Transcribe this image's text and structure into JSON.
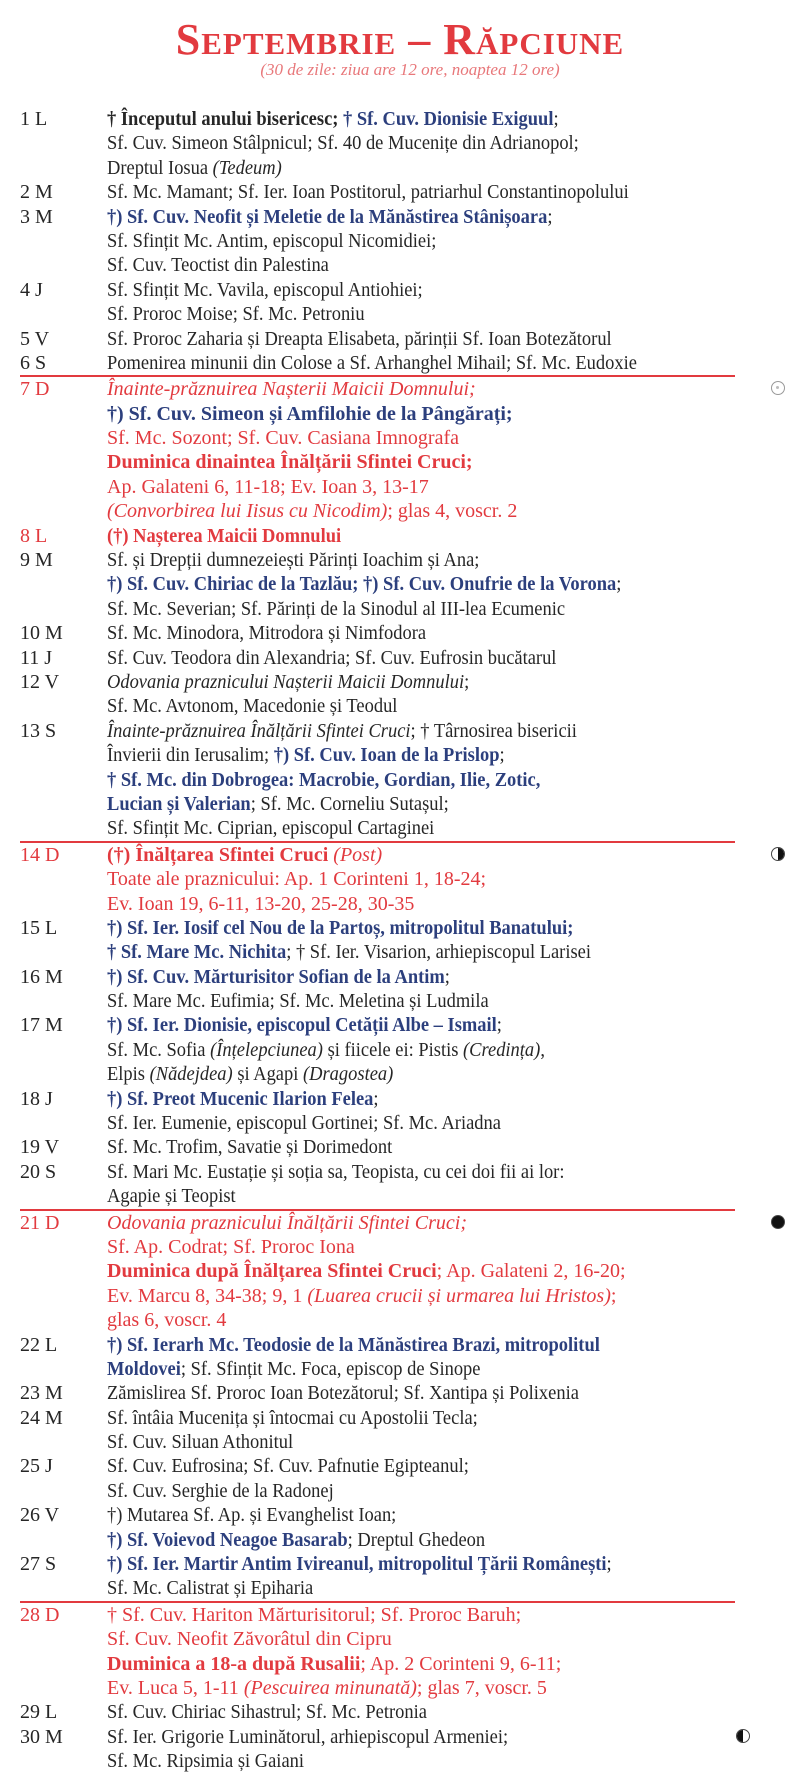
{
  "header": {
    "title": "Septembrie – Răpciune",
    "subtitle": "(30 de zile: ziua are 12 ore, noaptea 12 ore)"
  },
  "colors": {
    "red": "#e23a3f",
    "blue": "#2c3f7d"
  },
  "days": [
    {
      "label": "1 L",
      "lines": [
        [
          {
            "s": "bk",
            "t": "† Începutul anului bisericesc; "
          },
          {
            "s": "b",
            "t": "† Sf. Cuv. Dionisie Exiguul"
          },
          {
            "s": "n",
            "t": ";"
          }
        ],
        [
          {
            "s": "n",
            "t": "Sf. Cuv. Simeon Stâlpnicul; Sf. 40 de Mucenițe din Adrianopol;"
          }
        ],
        [
          {
            "s": "n",
            "t": "Dreptul Iosua "
          },
          {
            "s": "i",
            "t": "(Tedeum)"
          }
        ]
      ]
    },
    {
      "label": "2 M",
      "lines": [
        [
          {
            "s": "n",
            "t": "Sf. Mc. Mamant; Sf. Ier. Ioan Postitorul, patriarhul Constantinopolului"
          }
        ]
      ]
    },
    {
      "label": "3 M",
      "lines": [
        [
          {
            "s": "b",
            "t": "†) Sf. Cuv. Neofit și Meletie de la Mănăstirea Stânișoara"
          },
          {
            "s": "n",
            "t": ";"
          }
        ],
        [
          {
            "s": "n",
            "t": "Sf. Sfințit Mc. Antim, episcopul Nicomidiei;"
          }
        ],
        [
          {
            "s": "n",
            "t": "Sf. Cuv. Teoctist din Palestina"
          }
        ]
      ]
    },
    {
      "label": "4 J",
      "lines": [
        [
          {
            "s": "n",
            "t": "Sf. Sfințit Mc. Vavila, episcopul Antiohiei;"
          }
        ],
        [
          {
            "s": "n",
            "t": "Sf. Proroc Moise; Sf. Mc. Petroniu"
          }
        ]
      ]
    },
    {
      "label": "5 V",
      "lines": [
        [
          {
            "s": "n",
            "t": "Sf. Proroc Zaharia și Dreapta Elisabeta, părinții Sf. Ioan Botezătorul"
          }
        ]
      ]
    },
    {
      "label": "6 S",
      "lines": [
        [
          {
            "s": "n",
            "t": "Pomenirea minunii din Colose a Sf. Arhanghel Mihail; Sf. Mc. Eudoxie"
          }
        ]
      ]
    },
    {
      "label": "7 D",
      "sunday": true,
      "moon": "new",
      "lines": [
        [
          {
            "s": "ri",
            "t": "Înainte-prăznuirea Nașterii Maicii Domnului;"
          }
        ],
        [
          {
            "s": "b",
            "t": "†) Sf. Cuv. Simeon și Amfilohie de la Pângărați;"
          }
        ],
        [
          {
            "s": "r",
            "t": "Sf. Mc. Sozont; Sf. Cuv. Casiana Imnografa"
          }
        ],
        [
          {
            "s": "rb",
            "t": "Duminica dinaintea Înălțării Sfintei Cruci;"
          }
        ],
        [
          {
            "s": "r",
            "t": "Ap. Galateni 6, 11-18; Ev. Ioan 3, 13-17"
          }
        ],
        [
          {
            "s": "ri",
            "t": "(Convorbirea lui Iisus cu Nicodim)"
          },
          {
            "s": "r",
            "t": "; glas 4, voscr. 2"
          }
        ]
      ]
    },
    {
      "label": "8 L",
      "red": true,
      "lines": [
        [
          {
            "s": "rb",
            "t": "(†) Nașterea Maicii Domnului"
          }
        ]
      ]
    },
    {
      "label": "9 M",
      "lines": [
        [
          {
            "s": "n",
            "t": "Sf. și Drepții dumnezeiești Părinți Ioachim și Ana;"
          }
        ],
        [
          {
            "s": "b",
            "t": "†) Sf. Cuv. Chiriac de la Tazlău; †) Sf. Cuv. Onufrie de la Vorona"
          },
          {
            "s": "n",
            "t": ";"
          }
        ],
        [
          {
            "s": "n",
            "t": "Sf. Mc. Severian; Sf. Părinți de la Sinodul al III-lea Ecumenic"
          }
        ]
      ]
    },
    {
      "label": "10 M",
      "lines": [
        [
          {
            "s": "n",
            "t": "Sf. Mc. Minodora, Mitrodora și Nimfodora"
          }
        ]
      ]
    },
    {
      "label": "11 J",
      "lines": [
        [
          {
            "s": "n",
            "t": "Sf. Cuv. Teodora din Alexandria; Sf. Cuv. Eufrosin bucătarul"
          }
        ]
      ]
    },
    {
      "label": "12 V",
      "lines": [
        [
          {
            "s": "i",
            "t": "Odovania praznicului Nașterii Maicii Domnului"
          },
          {
            "s": "n",
            "t": ";"
          }
        ],
        [
          {
            "s": "n",
            "t": "Sf. Mc. Avtonom, Macedonie și Teodul"
          }
        ]
      ]
    },
    {
      "label": "13 S",
      "lines": [
        [
          {
            "s": "i",
            "t": "Înainte-prăznuirea Înălțării Sfintei Cruci"
          },
          {
            "s": "n",
            "t": "; † Târnosirea bisericii"
          }
        ],
        [
          {
            "s": "n",
            "t": "Învierii din Ierusalim; "
          },
          {
            "s": "b",
            "t": "†) Sf. Cuv. Ioan de la Prislop"
          },
          {
            "s": "n",
            "t": ";"
          }
        ],
        [
          {
            "s": "b",
            "t": "† Sf. Mc. din Dobrogea: Macrobie, Gordian, Ilie, Zotic,"
          }
        ],
        [
          {
            "s": "b",
            "t": "Lucian și Valerian"
          },
          {
            "s": "n",
            "t": "; Sf. Mc. Corneliu Sutașul;"
          }
        ],
        [
          {
            "s": "n",
            "t": "Sf. Sfințit Mc. Ciprian, episcopul Cartaginei"
          }
        ]
      ]
    },
    {
      "label": "14 D",
      "sunday": true,
      "moon": "first",
      "lines": [
        [
          {
            "s": "rb",
            "t": "(†) Înălțarea Sfintei Cruci "
          },
          {
            "s": "ri",
            "t": "(Post)"
          }
        ],
        [
          {
            "s": "r",
            "t": "Toate ale praznicului: Ap. 1 Corinteni 1, 18-24;"
          }
        ],
        [
          {
            "s": "r",
            "t": "Ev. Ioan 19, 6-11, 13-20, 25-28, 30-35"
          }
        ]
      ]
    },
    {
      "label": "15 L",
      "lines": [
        [
          {
            "s": "b",
            "t": "†) Sf. Ier. Iosif cel Nou de la Partoș, mitropolitul Banatului;"
          }
        ],
        [
          {
            "s": "b",
            "t": "† Sf. Mare Mc. Nichita"
          },
          {
            "s": "n",
            "t": "; † Sf. Ier. Visarion, arhiepiscopul Larisei"
          }
        ]
      ]
    },
    {
      "label": "16 M",
      "lines": [
        [
          {
            "s": "b",
            "t": "†) Sf. Cuv. Mărturisitor Sofian de la Antim"
          },
          {
            "s": "n",
            "t": ";"
          }
        ],
        [
          {
            "s": "n",
            "t": "Sf. Mare Mc. Eufimia; Sf. Mc. Meletina și Ludmila"
          }
        ]
      ]
    },
    {
      "label": "17 M",
      "lines": [
        [
          {
            "s": "b",
            "t": "†) Sf. Ier. Dionisie, episcopul Cetății Albe – Ismail"
          },
          {
            "s": "n",
            "t": ";"
          }
        ],
        [
          {
            "s": "n",
            "t": "Sf. Mc. Sofia "
          },
          {
            "s": "i",
            "t": "(Înțelepciunea)"
          },
          {
            "s": "n",
            "t": " și fiicele ei: Pistis "
          },
          {
            "s": "i",
            "t": "(Credința)"
          },
          {
            "s": "n",
            "t": ","
          }
        ],
        [
          {
            "s": "n",
            "t": "Elpis "
          },
          {
            "s": "i",
            "t": "(Nădejdea)"
          },
          {
            "s": "n",
            "t": " și Agapi "
          },
          {
            "s": "i",
            "t": "(Dragostea)"
          }
        ]
      ]
    },
    {
      "label": "18 J",
      "lines": [
        [
          {
            "s": "b",
            "t": "†) Sf. Preot Mucenic Ilarion Felea"
          },
          {
            "s": "n",
            "t": ";"
          }
        ],
        [
          {
            "s": "n",
            "t": "Sf. Ier. Eumenie, episcopul Gortinei; Sf. Mc. Ariadna"
          }
        ]
      ]
    },
    {
      "label": "19 V",
      "lines": [
        [
          {
            "s": "n",
            "t": "Sf. Mc. Trofim, Savatie și Dorimedont"
          }
        ]
      ]
    },
    {
      "label": "20 S",
      "lines": [
        [
          {
            "s": "n",
            "t": "Sf. Mari Mc. Eustație și soția sa, Teopista, cu cei doi fii ai lor:"
          }
        ],
        [
          {
            "s": "n",
            "t": "Agapie și Teopist"
          }
        ]
      ]
    },
    {
      "label": "21 D",
      "sunday": true,
      "moon": "full",
      "lines": [
        [
          {
            "s": "ri",
            "t": "Odovania praznicului Înălțării Sfintei Cruci;"
          }
        ],
        [
          {
            "s": "r",
            "t": "Sf. Ap. Codrat; Sf. Proroc Iona"
          }
        ],
        [
          {
            "s": "rb",
            "t": "Duminica după Înălțarea Sfintei Cruci"
          },
          {
            "s": "r",
            "t": "; Ap. Galateni 2, 16-20;"
          }
        ],
        [
          {
            "s": "r",
            "t": "Ev. Marcu 8, 34-38; 9, 1 "
          },
          {
            "s": "ri",
            "t": "(Luarea crucii și urmarea lui Hristos)"
          },
          {
            "s": "r",
            "t": ";"
          }
        ],
        [
          {
            "s": "r",
            "t": "glas 6, voscr. 4"
          }
        ]
      ]
    },
    {
      "label": "22 L",
      "lines": [
        [
          {
            "s": "b",
            "t": "†) Sf. Ierarh Mc. Teodosie de la Mănăstirea Brazi, mitropolitul"
          }
        ],
        [
          {
            "s": "b",
            "t": "Moldovei"
          },
          {
            "s": "n",
            "t": "; Sf. Sfințit Mc. Foca, episcop de Sinope"
          }
        ]
      ]
    },
    {
      "label": "23 M",
      "lines": [
        [
          {
            "s": "n",
            "t": "Zămislirea Sf. Proroc Ioan Botezătorul; Sf. Xantipa și Polixenia"
          }
        ]
      ]
    },
    {
      "label": "24 M",
      "lines": [
        [
          {
            "s": "n",
            "t": "Sf. întâia Mucenița și întocmai cu Apostolii Tecla;"
          }
        ],
        [
          {
            "s": "n",
            "t": "Sf. Cuv. Siluan Athonitul"
          }
        ]
      ]
    },
    {
      "label": "25 J",
      "lines": [
        [
          {
            "s": "n",
            "t": "Sf. Cuv. Eufrosina; Sf. Cuv. Pafnutie Egipteanul;"
          }
        ],
        [
          {
            "s": "n",
            "t": "Sf. Cuv. Serghie de la Radonej"
          }
        ]
      ]
    },
    {
      "label": "26 V",
      "lines": [
        [
          {
            "s": "n",
            "t": "†) Mutarea Sf. Ap. și Evanghelist Ioan;"
          }
        ],
        [
          {
            "s": "b",
            "t": "†) Sf. Voievod Neagoe Basarab"
          },
          {
            "s": "n",
            "t": "; Dreptul Ghedeon"
          }
        ]
      ]
    },
    {
      "label": "27 S",
      "lines": [
        [
          {
            "s": "b",
            "t": "†) Sf. Ier. Martir Antim Ivireanul, mitropolitul Țării Românești"
          },
          {
            "s": "n",
            "t": ";"
          }
        ],
        [
          {
            "s": "n",
            "t": "Sf. Mc. Calistrat și Epiharia"
          }
        ]
      ]
    },
    {
      "label": "28 D",
      "sunday": true,
      "lines": [
        [
          {
            "s": "r",
            "t": "† Sf. Cuv. Hariton Mărturisitorul; Sf. Proroc Baruh;"
          }
        ],
        [
          {
            "s": "r",
            "t": "Sf. Cuv. Neofit Zăvorâtul din Cipru"
          }
        ],
        [
          {
            "s": "rb",
            "t": "Duminica a 18-a după Rusalii"
          },
          {
            "s": "r",
            "t": "; Ap. 2 Corinteni 9, 6-11;"
          }
        ],
        [
          {
            "s": "r",
            "t": "Ev. Luca 5, 1-11 "
          },
          {
            "s": "ri",
            "t": "(Pescuirea minunată)"
          },
          {
            "s": "r",
            "t": "; glas 7, voscr. 5"
          }
        ]
      ]
    },
    {
      "label": "29 L",
      "lines": [
        [
          {
            "s": "n",
            "t": "Sf. Cuv. Chiriac Sihastrul; Sf. Mc. Petronia"
          }
        ]
      ]
    },
    {
      "label": "30 M",
      "moon": "last",
      "lines": [
        [
          {
            "s": "n",
            "t": "Sf. Ier. Grigorie Luminătorul, arhiepiscopul Armeniei;"
          }
        ],
        [
          {
            "s": "n",
            "t": "Sf. Mc. Ripsimia și Gaiani"
          }
        ]
      ]
    }
  ]
}
